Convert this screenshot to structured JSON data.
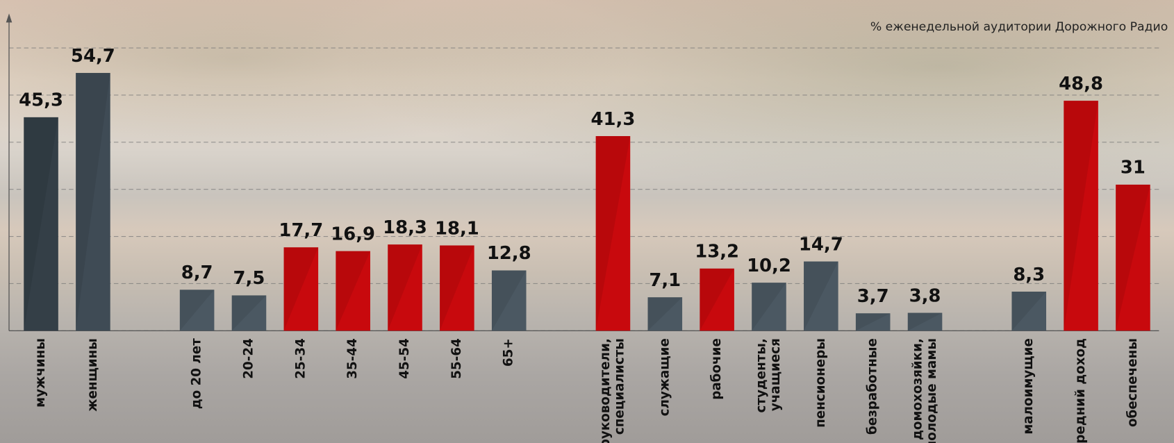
{
  "chart_data": {
    "type": "bar",
    "subtitle": "% еженедельной аудитории Дорожного Радио",
    "categories": [
      "мужчины",
      "женщины",
      null,
      "до 20 лет",
      "20-24",
      "25-34",
      "35-44",
      "45-54",
      "55-64",
      "65+",
      null,
      "руководители,\nспециалисты",
      "служащие",
      "рабочие",
      "студенты,\nучащиеся",
      "пенсионеры",
      "безработные",
      "домохозяйки,\nмолодые мамы",
      null,
      "малоимущие",
      "средний доход",
      "обеспечены"
    ],
    "values": [
      45.3,
      54.7,
      null,
      8.7,
      7.5,
      17.7,
      16.9,
      18.3,
      18.1,
      12.8,
      null,
      41.3,
      7.1,
      13.2,
      10.2,
      14.7,
      3.7,
      3.8,
      null,
      8.3,
      48.8,
      31
    ],
    "value_labels": [
      "45,3",
      "54,7",
      null,
      "8,7",
      "7,5",
      "17,7",
      "16,9",
      "18,3",
      "18,1",
      "12,8",
      null,
      "41,3",
      "7,1",
      "13,2",
      "10,2",
      "14,7",
      "3,7",
      "3,8",
      null,
      "8,3",
      "48,8",
      "31"
    ],
    "colors": [
      "#343f47",
      "#3f4b55",
      null,
      "#4b5862",
      "#4b5862",
      "#c8090d",
      "#c8090d",
      "#c8090d",
      "#c8090d",
      "#4b5862",
      null,
      "#c8090d",
      "#4b5862",
      "#c8090d",
      "#4b5862",
      "#4b5862",
      "#4b5862",
      "#4b5862",
      null,
      "#4b5862",
      "#c8090d",
      "#c8090d"
    ],
    "ylim": [
      0,
      67
    ],
    "yticks": [
      0,
      10,
      20,
      30,
      40,
      50,
      60
    ],
    "grid": true
  }
}
